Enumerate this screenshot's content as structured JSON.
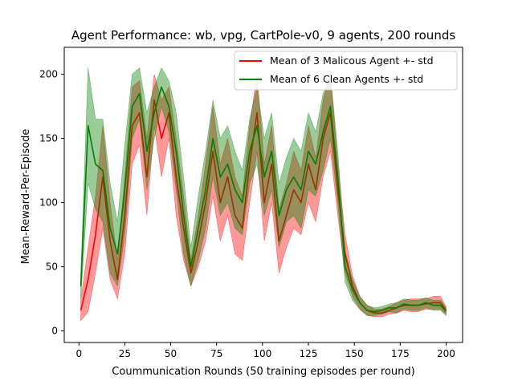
{
  "chart_data": {
    "type": "line",
    "title": "Agent Performance: wb, vpg, CartPole-v0, 9 agents, 200 rounds",
    "xlabel": "Coummunication Rounds (50 training episodes per round)",
    "ylabel": "Mean-Reward-Per-Episode",
    "xlim": [
      -8,
      209
    ],
    "ylim": [
      -9,
      221
    ],
    "xticks": [
      0,
      25,
      50,
      75,
      100,
      125,
      150,
      175,
      200
    ],
    "yticks": [
      0,
      50,
      100,
      150,
      200
    ],
    "grid": false,
    "legend_position": "top-right",
    "band": "mean +- std",
    "series": [
      {
        "name": "Mean of 3 Malicous Agent +- std",
        "color": "#ff0000",
        "x": [
          1,
          5,
          9,
          13,
          17,
          21,
          25,
          29,
          33,
          37,
          41,
          45,
          49,
          53,
          57,
          61,
          65,
          69,
          73,
          77,
          81,
          85,
          89,
          93,
          97,
          101,
          105,
          109,
          113,
          117,
          121,
          125,
          129,
          133,
          137,
          141,
          145,
          149,
          153,
          157,
          161,
          165,
          169,
          173,
          177,
          181,
          185,
          189,
          193,
          197,
          200
        ],
        "mean": [
          16,
          40,
          75,
          120,
          70,
          40,
          90,
          160,
          170,
          120,
          180,
          150,
          170,
          120,
          80,
          45,
          70,
          100,
          140,
          100,
          120,
          90,
          80,
          130,
          170,
          100,
          130,
          70,
          90,
          110,
          100,
          130,
          110,
          150,
          170,
          110,
          60,
          35,
          22,
          16,
          14,
          14,
          16,
          18,
          20,
          20,
          20,
          21,
          22,
          22,
          16
        ],
        "std": [
          8,
          25,
          30,
          40,
          30,
          15,
          30,
          30,
          25,
          30,
          20,
          30,
          20,
          30,
          25,
          10,
          20,
          30,
          35,
          30,
          30,
          30,
          25,
          30,
          30,
          30,
          30,
          25,
          25,
          30,
          25,
          30,
          25,
          30,
          30,
          20,
          15,
          8,
          5,
          4,
          3,
          3,
          3,
          4,
          4,
          5,
          5,
          4,
          5,
          5,
          3
        ]
      },
      {
        "name": "Mean of 6 Clean Agents +- std",
        "color": "#008000",
        "x": [
          1,
          5,
          9,
          13,
          17,
          21,
          25,
          29,
          33,
          37,
          41,
          45,
          49,
          53,
          57,
          61,
          65,
          69,
          73,
          77,
          81,
          85,
          89,
          93,
          97,
          101,
          105,
          109,
          113,
          117,
          121,
          125,
          129,
          133,
          137,
          141,
          145,
          149,
          153,
          157,
          161,
          165,
          169,
          173,
          177,
          181,
          185,
          189,
          193,
          197,
          200
        ],
        "mean": [
          35,
          160,
          130,
          125,
          80,
          60,
          110,
          175,
          185,
          140,
          170,
          190,
          175,
          140,
          90,
          50,
          80,
          110,
          150,
          120,
          130,
          110,
          100,
          140,
          160,
          120,
          140,
          90,
          110,
          120,
          110,
          140,
          130,
          155,
          175,
          120,
          50,
          32,
          22,
          16,
          15,
          16,
          18,
          18,
          21,
          20,
          20,
          22,
          20,
          20,
          15
        ],
        "std": [
          10,
          45,
          35,
          40,
          35,
          25,
          35,
          25,
          20,
          30,
          20,
          15,
          20,
          30,
          30,
          15,
          25,
          30,
          30,
          30,
          30,
          30,
          25,
          25,
          30,
          30,
          30,
          25,
          25,
          30,
          30,
          30,
          25,
          30,
          25,
          20,
          12,
          8,
          5,
          4,
          3,
          3,
          3,
          4,
          4,
          4,
          4,
          4,
          4,
          4,
          3
        ]
      }
    ]
  }
}
